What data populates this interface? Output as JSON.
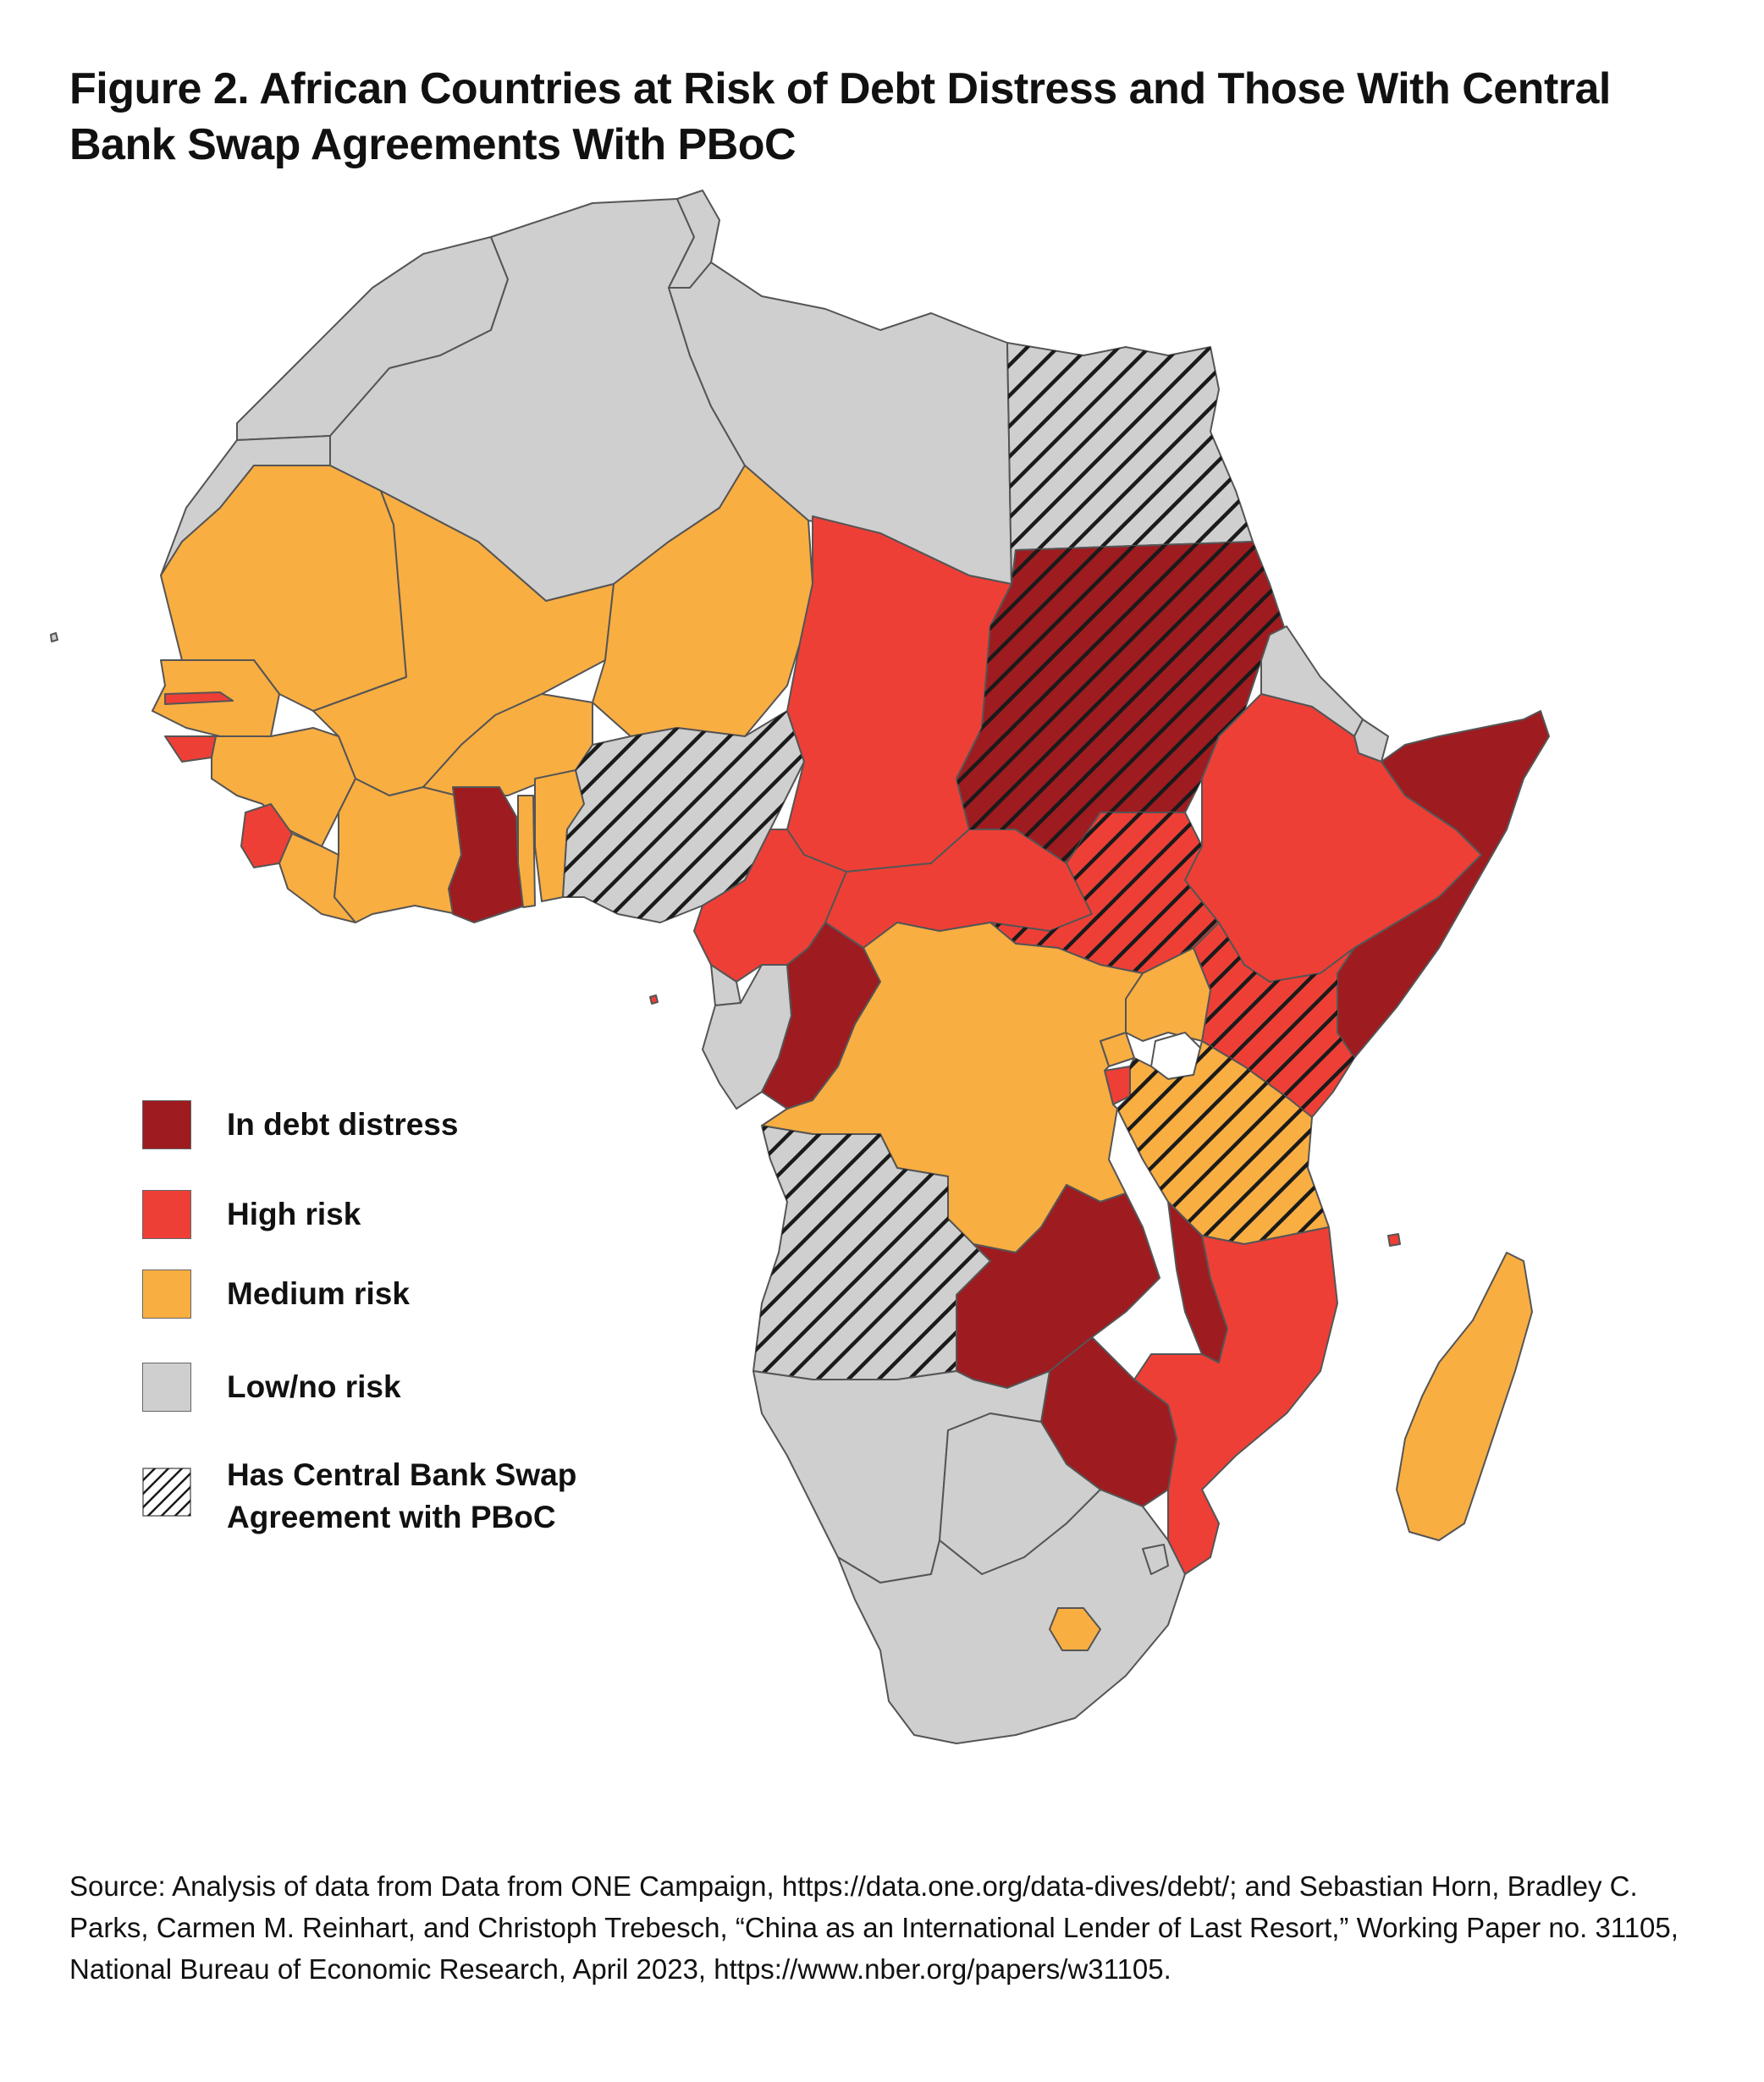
{
  "title": "Figure 2. African Countries at Risk of Debt Distress and Those With Central Bank Swap Agreements With PBoC",
  "colors": {
    "in_debt_distress": "#9e1b20",
    "high_risk": "#ee3f36",
    "medium_risk": "#f9ae42",
    "low_no_risk": "#cfcfcf",
    "border": "#555555",
    "hatch": "#1a1a1a"
  },
  "legend": {
    "distress": "In debt distress",
    "high": "High risk",
    "medium": "Medium risk",
    "low": "Low/no risk",
    "swap_line1": "Has Central Bank Swap",
    "swap_line2": "Agreement with PBoC"
  },
  "source": "Source: Analysis of data from Data from ONE Campaign, https://data.one.org/data-dives/debt/;  and Sebastian Horn, Bradley C. Parks, Carmen M. Reinhart, and Christoph Trebesch, “China as an International Lender of Last Resort,” Working Paper no. 31105, National Bureau of Economic Research, April 2023, https://www.nber.org/papers/w31105."
}
